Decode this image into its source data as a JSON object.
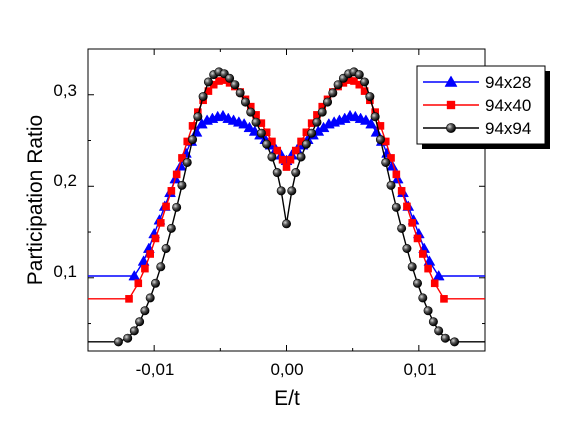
{
  "chart_data": {
    "type": "line",
    "title": "",
    "xlabel": "E/t",
    "ylabel": "Participation Ratio",
    "xlim": [
      -0.015,
      0.015
    ],
    "ylim": [
      0.02,
      0.35
    ],
    "xticks": [
      {
        "value": -0.01,
        "label": "-0,01"
      },
      {
        "value": 0.0,
        "label": "0,00"
      },
      {
        "value": 0.01,
        "label": "0,01"
      }
    ],
    "yticks": [
      {
        "value": 0.1,
        "label": "0,1"
      },
      {
        "value": 0.2,
        "label": "0,2"
      },
      {
        "value": 0.3,
        "label": "0,3"
      }
    ],
    "grid": false,
    "legend_position": "top-right",
    "series": [
      {
        "name": "94x28",
        "color": "#0000ff",
        "marker": "triangle",
        "x": [
          -0.015,
          -0.0115,
          -0.0108,
          -0.0104,
          -0.01,
          -0.0096,
          -0.0092,
          -0.0088,
          -0.0084,
          -0.008,
          -0.0076,
          -0.0072,
          -0.0068,
          -0.0064,
          -0.006,
          -0.0056,
          -0.0052,
          -0.0048,
          -0.0044,
          -0.004,
          -0.0036,
          -0.0032,
          -0.0028,
          -0.0024,
          -0.002,
          -0.0016,
          -0.0012,
          -0.0008,
          -0.0004,
          0.0,
          0.0004,
          0.0008,
          0.0012,
          0.0016,
          0.002,
          0.0024,
          0.0028,
          0.0032,
          0.0036,
          0.004,
          0.0044,
          0.0048,
          0.0052,
          0.0056,
          0.006,
          0.0064,
          0.0068,
          0.0072,
          0.0076,
          0.008,
          0.0084,
          0.0088,
          0.0092,
          0.0096,
          0.01,
          0.0104,
          0.0108,
          0.0115,
          0.015
        ],
        "y": [
          0.102,
          0.102,
          0.118,
          0.132,
          0.148,
          0.163,
          0.178,
          0.193,
          0.208,
          0.222,
          0.236,
          0.249,
          0.259,
          0.268,
          0.272,
          0.274,
          0.276,
          0.277,
          0.274,
          0.272,
          0.27,
          0.268,
          0.264,
          0.26,
          0.256,
          0.251,
          0.245,
          0.24,
          0.234,
          0.228,
          0.234,
          0.24,
          0.245,
          0.251,
          0.256,
          0.26,
          0.264,
          0.268,
          0.27,
          0.272,
          0.274,
          0.277,
          0.276,
          0.274,
          0.272,
          0.268,
          0.259,
          0.249,
          0.236,
          0.222,
          0.208,
          0.193,
          0.178,
          0.163,
          0.148,
          0.132,
          0.118,
          0.102,
          0.102
        ]
      },
      {
        "name": "94x40",
        "color": "#ff0000",
        "marker": "square",
        "x": [
          -0.015,
          -0.0119,
          -0.0112,
          -0.0107,
          -0.0103,
          -0.0099,
          -0.0095,
          -0.0091,
          -0.0087,
          -0.0083,
          -0.0079,
          -0.0075,
          -0.0071,
          -0.0067,
          -0.0063,
          -0.0059,
          -0.0055,
          -0.0051,
          -0.0047,
          -0.0043,
          -0.0039,
          -0.0035,
          -0.0031,
          -0.0027,
          -0.0023,
          -0.0019,
          -0.0015,
          -0.0011,
          -0.0007,
          -0.0003,
          0.0,
          0.0003,
          0.0007,
          0.0011,
          0.0015,
          0.0019,
          0.0023,
          0.0027,
          0.0031,
          0.0035,
          0.0039,
          0.0043,
          0.0047,
          0.0051,
          0.0055,
          0.0059,
          0.0063,
          0.0067,
          0.0071,
          0.0075,
          0.0079,
          0.0083,
          0.0087,
          0.0091,
          0.0095,
          0.0099,
          0.0103,
          0.0107,
          0.0112,
          0.0119,
          0.015
        ],
        "y": [
          0.077,
          0.077,
          0.094,
          0.11,
          0.126,
          0.143,
          0.16,
          0.178,
          0.195,
          0.213,
          0.231,
          0.249,
          0.266,
          0.281,
          0.294,
          0.304,
          0.311,
          0.315,
          0.316,
          0.313,
          0.309,
          0.303,
          0.295,
          0.287,
          0.278,
          0.269,
          0.259,
          0.249,
          0.239,
          0.229,
          0.221,
          0.229,
          0.239,
          0.249,
          0.259,
          0.269,
          0.278,
          0.287,
          0.295,
          0.303,
          0.309,
          0.313,
          0.316,
          0.315,
          0.311,
          0.304,
          0.294,
          0.281,
          0.266,
          0.249,
          0.231,
          0.213,
          0.195,
          0.178,
          0.16,
          0.143,
          0.126,
          0.11,
          0.094,
          0.077,
          0.077
        ]
      },
      {
        "name": "94x94",
        "color": "#000000",
        "marker": "sphere",
        "x": [
          -0.015,
          -0.0127,
          -0.012,
          -0.0115,
          -0.0111,
          -0.0107,
          -0.0103,
          -0.0099,
          -0.0095,
          -0.0091,
          -0.0087,
          -0.0083,
          -0.0079,
          -0.0075,
          -0.0071,
          -0.0067,
          -0.0063,
          -0.0059,
          -0.0055,
          -0.0051,
          -0.0047,
          -0.0043,
          -0.0039,
          -0.0035,
          -0.0031,
          -0.0027,
          -0.0023,
          -0.0019,
          -0.0015,
          -0.0011,
          -0.0007,
          -0.0004,
          0.0,
          0.0004,
          0.0007,
          0.0011,
          0.0015,
          0.0019,
          0.0023,
          0.0027,
          0.0031,
          0.0035,
          0.0039,
          0.0043,
          0.0047,
          0.0051,
          0.0055,
          0.0059,
          0.0063,
          0.0067,
          0.0071,
          0.0075,
          0.0079,
          0.0083,
          0.0087,
          0.0091,
          0.0095,
          0.0099,
          0.0103,
          0.0107,
          0.0111,
          0.0115,
          0.012,
          0.0127,
          0.015
        ],
        "y": [
          0.03,
          0.03,
          0.034,
          0.042,
          0.052,
          0.064,
          0.078,
          0.094,
          0.112,
          0.132,
          0.154,
          0.177,
          0.201,
          0.226,
          0.251,
          0.276,
          0.298,
          0.314,
          0.322,
          0.325,
          0.323,
          0.318,
          0.311,
          0.302,
          0.292,
          0.281,
          0.27,
          0.258,
          0.246,
          0.232,
          0.215,
          0.195,
          0.159,
          0.195,
          0.215,
          0.232,
          0.246,
          0.258,
          0.27,
          0.281,
          0.292,
          0.302,
          0.311,
          0.318,
          0.323,
          0.325,
          0.322,
          0.314,
          0.298,
          0.276,
          0.251,
          0.226,
          0.201,
          0.177,
          0.154,
          0.132,
          0.112,
          0.094,
          0.078,
          0.064,
          0.052,
          0.042,
          0.034,
          0.03,
          0.03
        ]
      }
    ]
  }
}
